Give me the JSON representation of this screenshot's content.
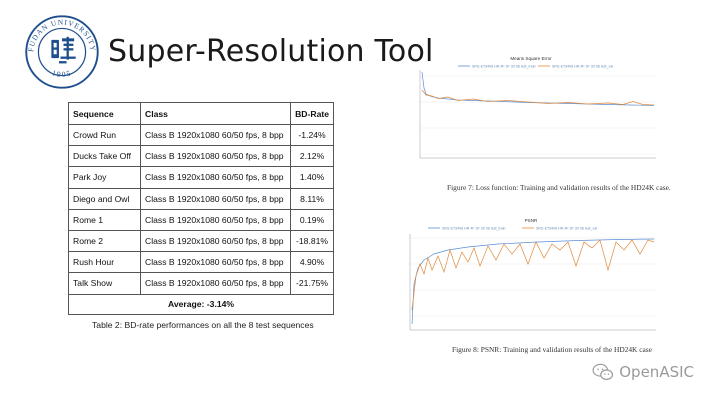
{
  "slide": {
    "title": "Super-Resolution Tool",
    "logo_text": "FUDAN UNIVERSITY",
    "logo_year": "1905"
  },
  "table": {
    "headers": [
      "Sequence",
      "Class",
      "BD-Rate"
    ],
    "rows": [
      [
        "Crowd Run",
        "Class B 1920x1080 60/50 fps, 8 bpp",
        "-1.24%"
      ],
      [
        "Ducks Take Off",
        "Class B 1920x1080 60/50 fps, 8 bpp",
        "2.12%"
      ],
      [
        "Park Joy",
        "Class B 1920x1080 60/50 fps, 8 bpp",
        "1.40%"
      ],
      [
        "Diego and Owl",
        "Class B 1920x1080 60/50 fps, 8 bpp",
        "8.11%"
      ],
      [
        "Rome 1",
        "Class B 1920x1080 60/50 fps, 8 bpp",
        "0.19%"
      ],
      [
        "Rome 2",
        "Class B 1920x1080 60/50 fps, 8 bpp",
        "-18.81%"
      ],
      [
        "Rush Hour",
        "Class B 1920x1080 60/50 fps, 8 bpp",
        "4.90%"
      ],
      [
        "Talk Show",
        "Class B 1920x1080 60/50 fps, 8 bpp",
        "-21.75%"
      ]
    ],
    "average": "Average: -3.14%",
    "caption": "Table 2: BD-rate performances on all the 8 test sequences"
  },
  "figures": {
    "loss": {
      "title": "Means Square Error",
      "legend": [
        "SRS-ET3408 HR 4F 3F 30 08 test_train",
        "SRS-ET3408 HR 4F 3F 30 08 test_val"
      ],
      "caption": "Figure 7: Loss function: Training and validation results of the HD24K case."
    },
    "psnr": {
      "title": "PSNR",
      "legend": [
        "SRS-ET3408 HR 4F 3F 30 08 test_train",
        "SRS-ET3408 HR 4F 3F 30 08 test_val"
      ],
      "caption": "Figure 8: PSNR: Training and validation results of the HD24K case"
    }
  },
  "watermark": {
    "text": "OpenASIC"
  }
}
